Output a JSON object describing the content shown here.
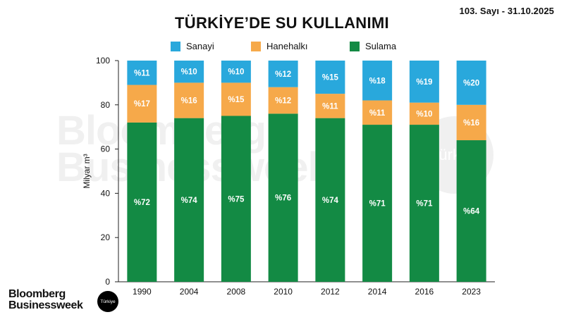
{
  "header": {
    "issue": "103. Sayı - 31.10.2025",
    "title": "TÜRKİYE’DE SU KULLANIMI"
  },
  "brand": {
    "line1": "Bloomberg",
    "line2": "Businessweek",
    "badge": "Türkiye"
  },
  "colors": {
    "sanayi": "#29a8dc",
    "hanehalki": "#f6a94a",
    "sulama": "#138a44",
    "axis": "#222222"
  },
  "chart_data": {
    "type": "bar",
    "stacked": true,
    "title": "TÜRKİYE’DE SU KULLANIMI",
    "ylabel": "Milyar m³",
    "xlabel": "",
    "ylim": [
      0,
      100
    ],
    "yticks": [
      0,
      20,
      40,
      60,
      80,
      100
    ],
    "grid": false,
    "legend_position": "top",
    "categories": [
      "1990",
      "2004",
      "2008",
      "2010",
      "2012",
      "2014",
      "2016",
      "2023"
    ],
    "series": [
      {
        "name": "Sulama",
        "color_key": "sulama",
        "values": [
          72,
          74,
          75,
          76,
          74,
          71,
          71,
          64
        ],
        "labels": [
          "%72",
          "%74",
          "%75",
          "%76",
          "%74",
          "%71",
          "%71",
          "%64"
        ]
      },
      {
        "name": "Hanehalkı",
        "color_key": "hanehalki",
        "values": [
          17,
          16,
          15,
          12,
          11,
          11,
          10,
          16
        ],
        "labels": [
          "%17",
          "%16",
          "%15",
          "%12",
          "%11",
          "%11",
          "%10",
          "%16"
        ]
      },
      {
        "name": "Sanayi",
        "color_key": "sanayi",
        "values": [
          11,
          10,
          10,
          12,
          15,
          18,
          19,
          20
        ],
        "labels": [
          "%11",
          "%10",
          "%10",
          "%12",
          "%15",
          "%18",
          "%19",
          "%20"
        ]
      }
    ],
    "legend": [
      "Sanayi",
      "Hanehalkı",
      "Sulama"
    ]
  }
}
